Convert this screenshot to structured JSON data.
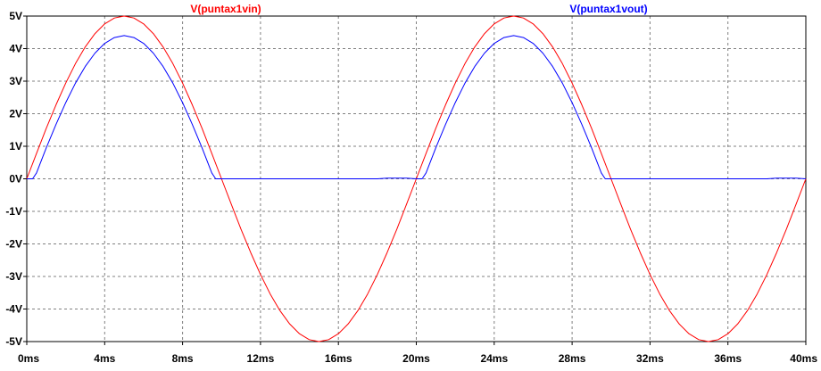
{
  "chart_data": {
    "type": "line",
    "title": "",
    "xlabel": "",
    "ylabel": "",
    "xunit": "ms",
    "yunit": "V",
    "xlim": [
      0,
      40
    ],
    "ylim": [
      -5,
      5
    ],
    "grid": true,
    "x_ticks": [
      "0ms",
      "4ms",
      "8ms",
      "12ms",
      "16ms",
      "20ms",
      "24ms",
      "28ms",
      "32ms",
      "36ms",
      "40ms"
    ],
    "y_ticks": [
      "5V",
      "4V",
      "3V",
      "2V",
      "1V",
      "0V",
      "-1V",
      "-2V",
      "-3V",
      "-4V",
      "-5V"
    ],
    "legend_placement": "top",
    "series": [
      {
        "name": "V(puntax1vin)",
        "color": "#ff0000",
        "x": [
          0,
          0.5,
          1,
          1.5,
          2,
          2.5,
          3,
          3.5,
          4,
          4.5,
          5,
          5.5,
          6,
          6.5,
          7,
          7.5,
          8,
          8.5,
          9,
          9.5,
          10,
          10.5,
          11,
          11.5,
          12,
          12.5,
          13,
          13.5,
          14,
          14.5,
          15,
          15.5,
          16,
          16.5,
          17,
          17.5,
          18,
          18.5,
          19,
          19.5,
          20,
          20.5,
          21,
          21.5,
          22,
          22.5,
          23,
          23.5,
          24,
          24.5,
          25,
          25.5,
          26,
          26.5,
          27,
          27.5,
          28,
          28.5,
          29,
          29.5,
          30,
          30.5,
          31,
          31.5,
          32,
          32.5,
          33,
          33.5,
          34,
          34.5,
          35,
          35.5,
          36,
          36.5,
          37,
          37.5,
          38,
          38.5,
          39,
          39.5,
          40
        ],
        "y": [
          0,
          0.78,
          1.55,
          2.27,
          2.94,
          3.54,
          4.05,
          4.46,
          4.76,
          4.94,
          5.0,
          4.94,
          4.76,
          4.46,
          4.05,
          3.54,
          2.94,
          2.27,
          1.55,
          0.78,
          0,
          -0.78,
          -1.55,
          -2.27,
          -2.94,
          -3.54,
          -4.05,
          -4.46,
          -4.76,
          -4.94,
          -5.0,
          -4.94,
          -4.76,
          -4.46,
          -4.05,
          -3.54,
          -2.94,
          -2.27,
          -1.55,
          -0.78,
          0,
          0.78,
          1.55,
          2.27,
          2.94,
          3.54,
          4.05,
          4.46,
          4.76,
          4.94,
          5.0,
          4.94,
          4.76,
          4.46,
          4.05,
          3.54,
          2.94,
          2.27,
          1.55,
          0.78,
          0,
          -0.78,
          -1.55,
          -2.27,
          -2.94,
          -3.54,
          -4.05,
          -4.46,
          -4.76,
          -4.94,
          -5.0,
          -4.94,
          -4.76,
          -4.46,
          -4.05,
          -3.54,
          -2.94,
          -2.27,
          -1.55,
          -0.78,
          0
        ]
      },
      {
        "name": "V(puntax1vout)",
        "color": "#0000ff",
        "x": [
          0,
          0.3,
          0.5,
          1,
          1.5,
          2,
          2.5,
          3,
          3.5,
          4,
          4.5,
          5,
          5.5,
          6,
          6.5,
          7,
          7.5,
          8,
          8.5,
          9,
          9.5,
          9.7,
          10,
          12,
          14,
          16,
          18,
          18.5,
          19,
          19.5,
          20,
          20.3,
          20.5,
          21,
          21.5,
          22,
          22.5,
          23,
          23.5,
          24,
          24.5,
          25,
          25.5,
          26,
          26.5,
          27,
          27.5,
          28,
          28.5,
          29,
          29.5,
          29.7,
          30,
          32,
          34,
          36,
          38,
          38.5,
          39,
          39.5,
          40
        ],
        "y": [
          0,
          0,
          0.18,
          0.95,
          1.67,
          2.34,
          2.94,
          3.45,
          3.86,
          4.16,
          4.34,
          4.4,
          4.34,
          4.16,
          3.86,
          3.45,
          2.94,
          2.34,
          1.67,
          0.95,
          0.18,
          0,
          0,
          0,
          0,
          0,
          0,
          0.02,
          0.02,
          0.02,
          0,
          0,
          0.18,
          0.95,
          1.67,
          2.34,
          2.94,
          3.45,
          3.86,
          4.16,
          4.34,
          4.4,
          4.34,
          4.16,
          3.86,
          3.45,
          2.94,
          2.34,
          1.67,
          0.95,
          0.18,
          0,
          0,
          0,
          0,
          0,
          0,
          0.02,
          0.02,
          0.02,
          0
        ]
      }
    ]
  }
}
